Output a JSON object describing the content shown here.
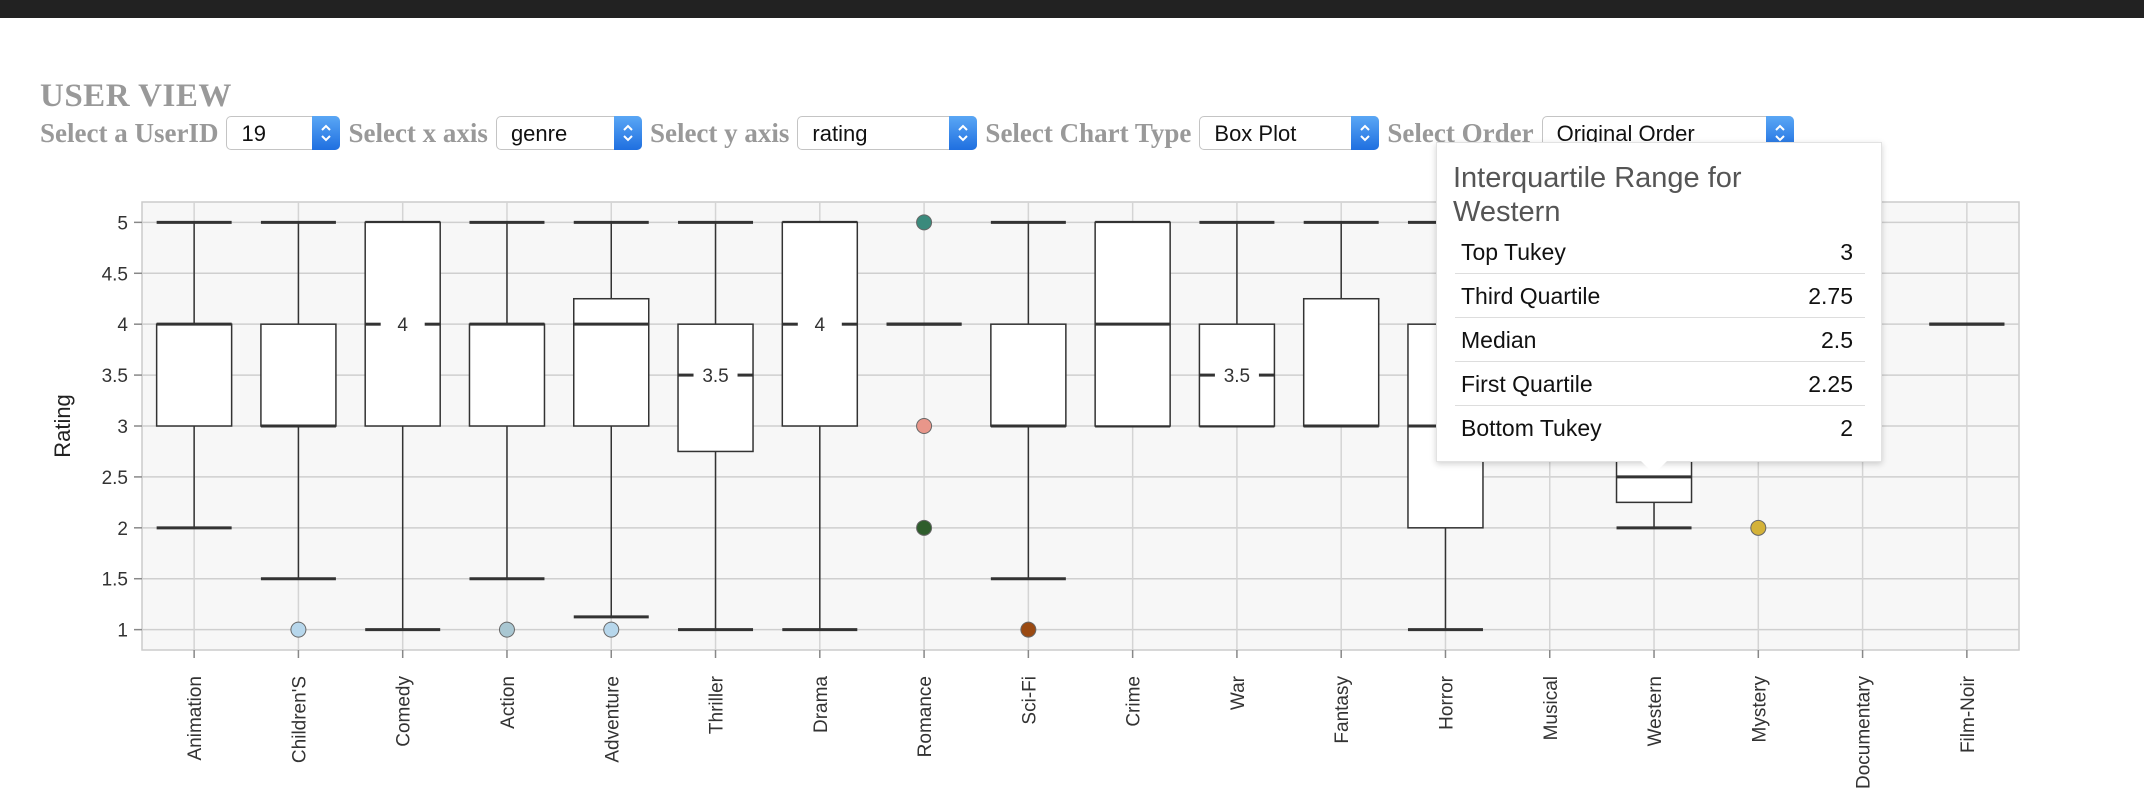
{
  "header": {
    "title": "USER VIEW"
  },
  "controls": {
    "userid": {
      "label": "Select a UserID",
      "value": "19"
    },
    "xaxis": {
      "label": "Select x axis",
      "value": "genre"
    },
    "yaxis": {
      "label": "Select y axis",
      "value": "rating"
    },
    "charttype": {
      "label": "Select Chart Type",
      "value": "Box Plot"
    },
    "order": {
      "label": "Select Order",
      "value": "Original Order"
    }
  },
  "tooltip": {
    "title": "Interquartile Range for Western",
    "rows": [
      {
        "label": "Top Tukey",
        "value": "3"
      },
      {
        "label": "Third Quartile",
        "value": "2.75"
      },
      {
        "label": "Median",
        "value": "2.5"
      },
      {
        "label": "First Quartile",
        "value": "2.25"
      },
      {
        "label": "Bottom Tukey",
        "value": "2"
      }
    ]
  },
  "chart_data": {
    "type": "boxplot",
    "title": "",
    "xlabel": "",
    "ylabel": "Rating",
    "ylim": [
      0.8,
      5.2
    ],
    "yticks": [
      1,
      1.5,
      2,
      2.5,
      3,
      3.5,
      4,
      4.5,
      5
    ],
    "ytick_labels": [
      "1",
      "1.5",
      "2",
      "2.5",
      "3",
      "3.5",
      "4",
      "4.5",
      "5"
    ],
    "grid": true,
    "categories": [
      "Animation",
      "Children'S",
      "Comedy",
      "Action",
      "Adventure",
      "Thriller",
      "Drama",
      "Romance",
      "Sci-Fi",
      "Crime",
      "War",
      "Fantasy",
      "Horror",
      "Musical",
      "Western",
      "Mystery",
      "Documentary",
      "Film-Noir"
    ],
    "boxes": [
      {
        "category": "Animation",
        "low": 2,
        "q1": 3,
        "median": 4,
        "q3": 4,
        "high": 5,
        "outliers": []
      },
      {
        "category": "Children'S",
        "low": 1.5,
        "q1": 3,
        "median": 3,
        "q3": 4,
        "high": 5,
        "outliers": [
          1
        ]
      },
      {
        "category": "Comedy",
        "low": 1,
        "q1": 3,
        "median": 4,
        "q3": 5,
        "high": 5,
        "outliers": [],
        "median_label": "4"
      },
      {
        "category": "Action",
        "low": 1.5,
        "q1": 3,
        "median": 4,
        "q3": 4,
        "high": 5,
        "outliers": [
          1
        ]
      },
      {
        "category": "Adventure",
        "low": 1.125,
        "q1": 3,
        "median": 4,
        "q3": 4.25,
        "high": 5,
        "outliers": [
          1
        ]
      },
      {
        "category": "Thriller",
        "low": 1,
        "q1": 2.75,
        "median": 3.5,
        "q3": 4,
        "high": 5,
        "outliers": [],
        "median_label": "3.5"
      },
      {
        "category": "Drama",
        "low": 1,
        "q1": 3,
        "median": 4,
        "q3": 5,
        "high": 5,
        "outliers": [],
        "median_label": "4"
      },
      {
        "category": "Romance",
        "low": 4,
        "q1": 4,
        "median": 4,
        "q3": 4,
        "high": 4,
        "outliers": [
          5,
          3,
          2
        ]
      },
      {
        "category": "Sci-Fi",
        "low": 1.5,
        "q1": 3,
        "median": 3,
        "q3": 4,
        "high": 5,
        "outliers": [
          1
        ]
      },
      {
        "category": "Crime",
        "low": 3,
        "q1": 3,
        "median": 4,
        "q3": 5,
        "high": 5,
        "outliers": []
      },
      {
        "category": "War",
        "low": 3,
        "q1": 3,
        "median": 3.5,
        "q3": 4,
        "high": 5,
        "outliers": [],
        "median_label": "3.5"
      },
      {
        "category": "Fantasy",
        "low": 3,
        "q1": 3,
        "median": 3,
        "q3": 4.25,
        "high": 5,
        "outliers": []
      },
      {
        "category": "Horror",
        "low": 1,
        "q1": 2,
        "median": 3,
        "q3": 4,
        "high": 5,
        "outliers": []
      },
      {
        "category": "Musical",
        "low": null,
        "q1": null,
        "median": null,
        "q3": null,
        "high": null,
        "outliers": []
      },
      {
        "category": "Western",
        "low": 2,
        "q1": 2.25,
        "median": 2.5,
        "q3": 2.75,
        "high": 3,
        "outliers": []
      },
      {
        "category": "Mystery",
        "low": 3,
        "q1": 3,
        "median": 3,
        "q3": 3,
        "high": 3,
        "outliers": [
          2
        ]
      },
      {
        "category": "Documentary",
        "low": null,
        "q1": null,
        "median": null,
        "q3": null,
        "high": null,
        "outliers": []
      },
      {
        "category": "Film-Noir",
        "low": 4,
        "q1": 4,
        "median": 4,
        "q3": 4,
        "high": 4,
        "outliers": []
      }
    ],
    "outlier_colors": {
      "Children'S": [
        "#b7d7ec"
      ],
      "Action": [
        "#a9c7d2"
      ],
      "Adventure": [
        "#b7d7ec"
      ],
      "Romance": [
        "#3a8a7c",
        "#e8968a",
        "#2f5d2c"
      ],
      "Sci-Fi": [
        "#9a4a12"
      ],
      "Mystery": [
        "#d4b238"
      ]
    }
  }
}
